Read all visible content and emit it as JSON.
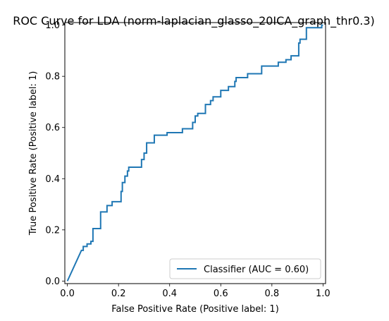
{
  "chart_data": {
    "type": "line",
    "title": "ROC Curve for LDA (norm-laplacian_glasso_20ICA_graph_thr0.3)",
    "xlabel": "False Positive Rate (Positive label: 1)",
    "ylabel": "True Positive Rate (Positive label: 1)",
    "xlim": [
      -0.01,
      1.01
    ],
    "ylim": [
      -0.01,
      1.01
    ],
    "xticks": [
      0.0,
      0.2,
      0.4,
      0.6,
      0.8,
      1.0
    ],
    "yticks": [
      0.0,
      0.2,
      0.4,
      0.6,
      0.8,
      1.0
    ],
    "xtick_labels": [
      "0.0",
      "0.2",
      "0.4",
      "0.6",
      "0.8",
      "1.0"
    ],
    "ytick_labels": [
      "0.0",
      "0.2",
      "0.4",
      "0.6",
      "0.8",
      "1.0"
    ],
    "grid": false,
    "legend": {
      "placement": "lower-right",
      "entries": [
        "Classifier (AUC = 0.60)"
      ]
    },
    "series": [
      {
        "name": "Classifier (AUC = 0.60)",
        "color": "#1f77b4",
        "x": [
          0.0,
          0.055,
          0.062,
          0.062,
          0.077,
          0.077,
          0.092,
          0.092,
          0.1,
          0.1,
          0.1,
          0.13,
          0.13,
          0.155,
          0.155,
          0.175,
          0.175,
          0.21,
          0.21,
          0.215,
          0.215,
          0.225,
          0.225,
          0.235,
          0.235,
          0.24,
          0.24,
          0.25,
          0.25,
          0.29,
          0.29,
          0.3,
          0.3,
          0.31,
          0.31,
          0.34,
          0.34,
          0.39,
          0.39,
          0.45,
          0.45,
          0.49,
          0.49,
          0.5,
          0.5,
          0.51,
          0.51,
          0.54,
          0.54,
          0.56,
          0.56,
          0.57,
          0.57,
          0.6,
          0.6,
          0.63,
          0.63,
          0.655,
          0.655,
          0.66,
          0.66,
          0.68,
          0.68,
          0.705,
          0.705,
          0.76,
          0.76,
          0.825,
          0.825,
          0.855,
          0.855,
          0.875,
          0.875,
          0.905,
          0.905,
          0.91,
          0.91,
          0.935,
          0.935,
          0.995,
          0.995,
          1.0
        ],
        "y": [
          0.0,
          0.12,
          0.12,
          0.135,
          0.135,
          0.145,
          0.145,
          0.155,
          0.155,
          0.17,
          0.205,
          0.205,
          0.27,
          0.27,
          0.295,
          0.295,
          0.31,
          0.31,
          0.35,
          0.35,
          0.385,
          0.385,
          0.41,
          0.41,
          0.43,
          0.43,
          0.445,
          0.445,
          0.445,
          0.445,
          0.475,
          0.475,
          0.5,
          0.5,
          0.54,
          0.54,
          0.57,
          0.57,
          0.58,
          0.58,
          0.595,
          0.595,
          0.62,
          0.62,
          0.645,
          0.645,
          0.655,
          0.655,
          0.69,
          0.69,
          0.705,
          0.705,
          0.72,
          0.72,
          0.745,
          0.745,
          0.76,
          0.76,
          0.78,
          0.78,
          0.795,
          0.795,
          0.795,
          0.795,
          0.81,
          0.81,
          0.84,
          0.84,
          0.855,
          0.855,
          0.865,
          0.865,
          0.88,
          0.88,
          0.93,
          0.93,
          0.945,
          0.945,
          0.99,
          0.99,
          1.0,
          1.0
        ]
      }
    ]
  }
}
